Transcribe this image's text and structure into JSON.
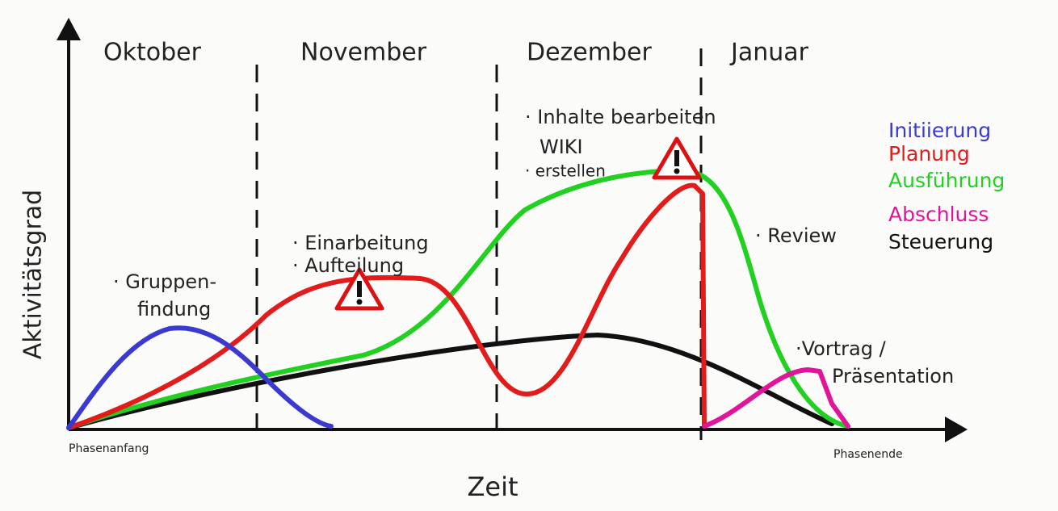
{
  "months": [
    "Oktober",
    "November",
    "Dezember",
    "Januar"
  ],
  "axes": {
    "y_label": "Aktivitätsgrad",
    "x_label": "Zeit",
    "start": "Phasenanfang",
    "end": "Phasenende"
  },
  "annotations": [
    [
      "· Gruppen-",
      "findung"
    ],
    [
      "· Einarbeitung",
      "· Aufteilung"
    ],
    [
      "· Inhalte bearbeiten",
      "WIKI",
      "· erstellen"
    ],
    [
      "· Review"
    ],
    [
      "·Vortrag /",
      "Präsentation"
    ]
  ],
  "legend": [
    {
      "name": "Initiierung",
      "color": "#3a3ad0"
    },
    {
      "name": "Planung",
      "color": "#e21b1b"
    },
    {
      "name": "Ausführung",
      "color": "#22d022"
    },
    {
      "name": "Abschluss",
      "color": "#e0159a"
    },
    {
      "name": "Steuerung",
      "color": "#111111"
    }
  ]
}
